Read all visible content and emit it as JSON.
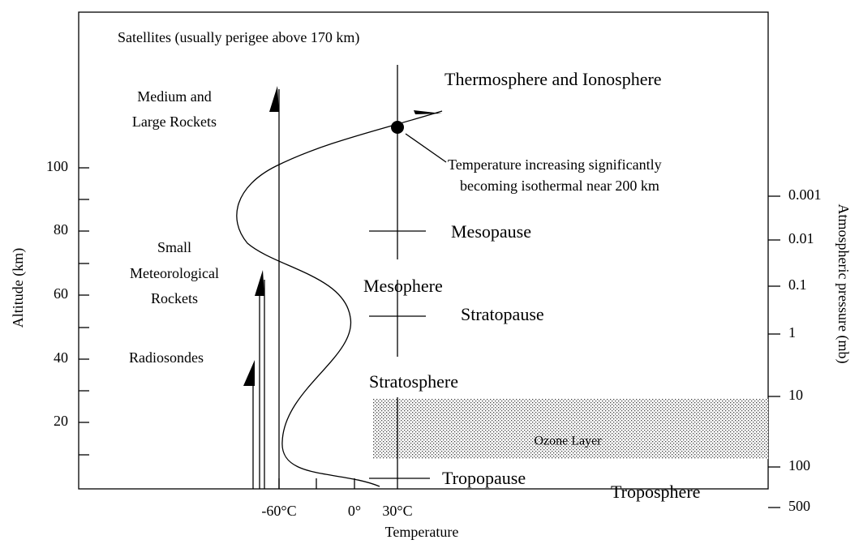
{
  "labels": {
    "satellites": "Satellites (usually perigee above 170 km)",
    "medium_rockets": [
      "Medium and",
      "Large Rockets"
    ],
    "small_rockets": [
      "Small",
      "Meteorological",
      "Rockets"
    ],
    "radiosondes": "Radiosondes",
    "thermosphere": "Thermosphere and Ionosphere",
    "note": [
      "Temperature increasing significantly",
      "becoming isothermal near 200 km"
    ],
    "mesopause": "Mesopause",
    "mesosphere": "Mesophere",
    "stratopause": "Stratopause",
    "stratosphere": "Stratosphere",
    "ozone": "Ozone Layer",
    "tropopause": "Tropopause",
    "troposphere": "Troposphere"
  },
  "left_axis": {
    "title": "Altitude (km)",
    "ticks": [
      "100",
      "80",
      "60",
      "40",
      "20"
    ]
  },
  "right_axis": {
    "title": "Atmospheric pressure (mb)",
    "ticks": [
      "0.001",
      "0.01",
      "0.1",
      "1",
      "10",
      "100",
      "500"
    ]
  },
  "x_axis": {
    "title": "Temperature",
    "ticks": [
      "-60°C",
      "0°",
      "30°C"
    ]
  }
}
